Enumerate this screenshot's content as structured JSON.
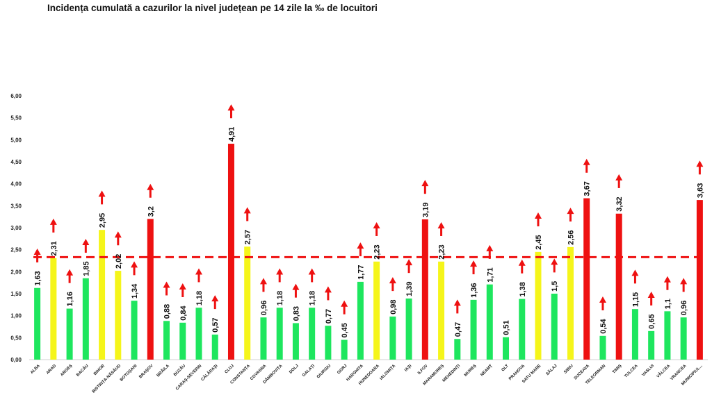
{
  "title": "Incidența cumulată a cazurilor la nivel județean pe 14 zile la ‰ de locuitori",
  "chart_data": {
    "type": "bar",
    "title": "Incidența cumulată a cazurilor la nivel județean pe 14 zile la ‰ de locuitori",
    "categories": [
      "ALBA",
      "ARAD",
      "ARGEȘ",
      "BACĂU",
      "BIHOR",
      "BISTRIȚA-NĂSĂUD",
      "BOTOȘANI",
      "BRAȘOV",
      "BRĂILA",
      "BUZĂU",
      "CARAȘ-SEVERIN",
      "CĂLĂRAȘI",
      "CLUJ",
      "CONSTANȚA",
      "COVASNA",
      "DÂMBOVIȚA",
      "DOLJ",
      "GALAȚI",
      "GIURGIU",
      "GORJ",
      "HARGHITA",
      "HUNEDOARA",
      "IALOMIȚA",
      "IAȘI",
      "ILFOV",
      "MARAMUREȘ",
      "MEHEDINȚI",
      "MUREȘ",
      "NEAMȚ",
      "OLT",
      "PRAHOVA",
      "SATU MARE",
      "SĂLAJ",
      "SIBIU",
      "SUCEAVA",
      "TELEORMAN",
      "TIMIȘ",
      "TULCEA",
      "VASLUI",
      "VÂLCEA",
      "VRANCEA",
      "MUNICIPIUL..."
    ],
    "values": [
      1.63,
      2.31,
      1.16,
      1.85,
      2.95,
      2.02,
      1.34,
      3.2,
      0.88,
      0.84,
      1.18,
      0.57,
      4.91,
      2.57,
      0.96,
      1.18,
      0.83,
      1.18,
      0.77,
      0.45,
      1.77,
      2.23,
      0.98,
      1.39,
      3.19,
      2.23,
      0.47,
      1.36,
      1.71,
      0.51,
      1.38,
      2.45,
      1.5,
      2.56,
      3.67,
      0.54,
      3.32,
      1.15,
      0.65,
      1.1,
      0.96,
      3.63
    ],
    "labels": [
      "1,63",
      "2,31",
      "1,16",
      "1,85",
      "2,95",
      "2,02",
      "1,34",
      "3,2",
      "0,88",
      "0,84",
      "1,18",
      "0,57",
      "4,91",
      "2,57",
      "0,96",
      "1,18",
      "0,83",
      "1,18",
      "0,77",
      "0,45",
      "1,77",
      "2,23",
      "0,98",
      "1,39",
      "3,19",
      "2,23",
      "0,47",
      "1,36",
      "1,71",
      "0,51",
      "1,38",
      "2,45",
      "1,5",
      "2,56",
      "3,67",
      "0,54",
      "3,32",
      "1,15",
      "0,65",
      "1,1",
      "0,96",
      "3,63"
    ],
    "colors": [
      "green",
      "yellow",
      "green",
      "green",
      "yellow",
      "yellow",
      "green",
      "red",
      "green",
      "green",
      "green",
      "green",
      "red",
      "yellow",
      "green",
      "green",
      "green",
      "green",
      "green",
      "green",
      "green",
      "yellow",
      "green",
      "green",
      "red",
      "yellow",
      "green",
      "green",
      "green",
      "green",
      "green",
      "yellow",
      "green",
      "yellow",
      "red",
      "green",
      "red",
      "green",
      "green",
      "green",
      "green",
      "red"
    ],
    "color_map": {
      "green": "#1ee65e",
      "yellow": "#f5f51a",
      "red": "#ee1111"
    },
    "trend_arrows": [
      "up",
      "up",
      "up",
      "up",
      "up",
      "up",
      "up",
      "up",
      "up",
      "up",
      "up",
      "up",
      "up",
      "up",
      "up",
      "up",
      "up",
      "up",
      "up",
      "up",
      "up",
      "up",
      "up",
      "up",
      "up",
      "up",
      "up",
      "up",
      "up",
      "none",
      "up",
      "up",
      "up",
      "up",
      "up",
      "up",
      "up",
      "up",
      "up",
      "up",
      "up",
      "up"
    ],
    "arrow_color": "#ee1111",
    "threshold": 2.33,
    "threshold_color": "#ee1111",
    "threshold_style": "dashed",
    "ylim": [
      0,
      6
    ],
    "yticks": [
      "0,00",
      "0,50",
      "1,00",
      "1,50",
      "2,00",
      "2,50",
      "3,00",
      "3,50",
      "4,00",
      "4,50",
      "5,00",
      "5,50",
      "6,00"
    ],
    "grid": false,
    "xlabel": "",
    "ylabel": ""
  }
}
